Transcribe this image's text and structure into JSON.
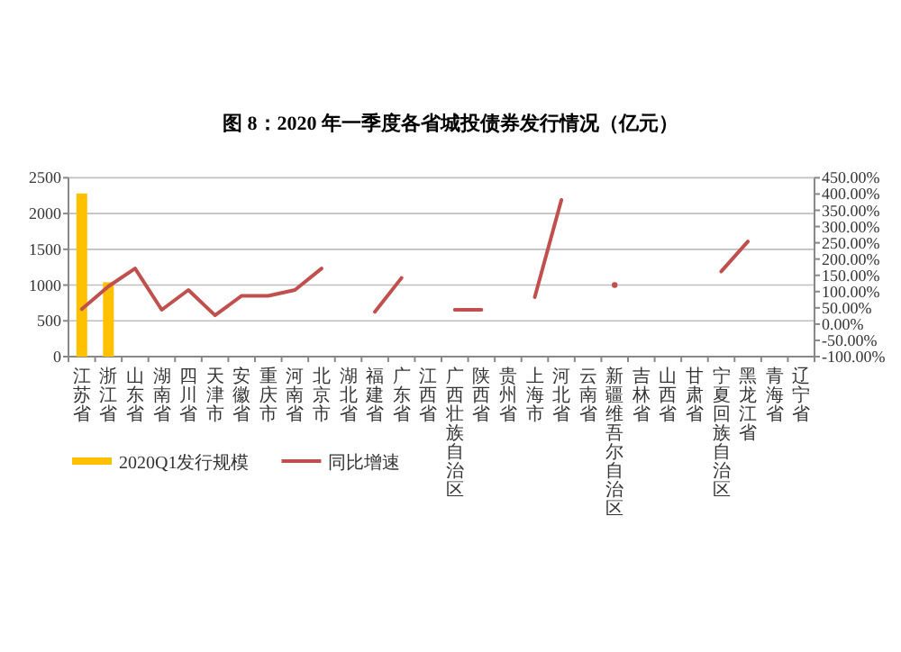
{
  "chart_data": {
    "type": "bar",
    "title": "图 8：2020 年一季度各省城投债券发行情况（亿元）",
    "categories": [
      "江苏省",
      "浙江省",
      "山东省",
      "湖南省",
      "四川省",
      "天津市",
      "安徽省",
      "重庆市",
      "河南省",
      "北京市",
      "湖北省",
      "福建省",
      "广东省",
      "江西省",
      "广西壮族自治区",
      "陕西省",
      "贵州省",
      "上海市",
      "河北省",
      "云南省",
      "新疆维吾尔自治区",
      "吉林省",
      "山西省",
      "甘肃省",
      "宁夏回族自治区",
      "黑龙江省",
      "青海省",
      "辽宁省"
    ],
    "series": [
      {
        "name": "2020Q1发行规模",
        "color": "#ffc000",
        "values": [
          2280,
          1040,
          null,
          null,
          null,
          null,
          null,
          null,
          null,
          null,
          null,
          null,
          null,
          null,
          null,
          null,
          null,
          null,
          null,
          null,
          null,
          null,
          null,
          null,
          null,
          null,
          null,
          null
        ]
      },
      {
        "name": "同比增速",
        "type": "line",
        "axis": "y2",
        "color": "#c0504d",
        "values": [
          46,
          116,
          171,
          44,
          105,
          27,
          87,
          87,
          105,
          171,
          null,
          38,
          142,
          null,
          44,
          44,
          null,
          83,
          382,
          null,
          120,
          null,
          null,
          null,
          162,
          254,
          null,
          null
        ]
      }
    ],
    "ylim": [
      0,
      2500
    ],
    "yticks": [
      0,
      500,
      1000,
      1500,
      2000,
      2500
    ],
    "y2lim": [
      -100,
      450
    ],
    "y2ticks": [
      {
        "value": -100,
        "label": "-100.00%"
      },
      {
        "value": -50,
        "label": "-50.00%"
      },
      {
        "value": 0,
        "label": "0.00%"
      },
      {
        "value": 50,
        "label": "50.00%"
      },
      {
        "value": 100,
        "label": "100.00%"
      },
      {
        "value": 150,
        "label": "150.00%"
      },
      {
        "value": 200,
        "label": "200.00%"
      },
      {
        "value": 250,
        "label": "250.00%"
      },
      {
        "value": 300,
        "label": "300.00%"
      },
      {
        "value": 350,
        "label": "350.00%"
      },
      {
        "value": 400,
        "label": "400.00%"
      },
      {
        "value": 450,
        "label": "450.00%"
      }
    ],
    "grid": "y",
    "legend": "bottom left"
  }
}
